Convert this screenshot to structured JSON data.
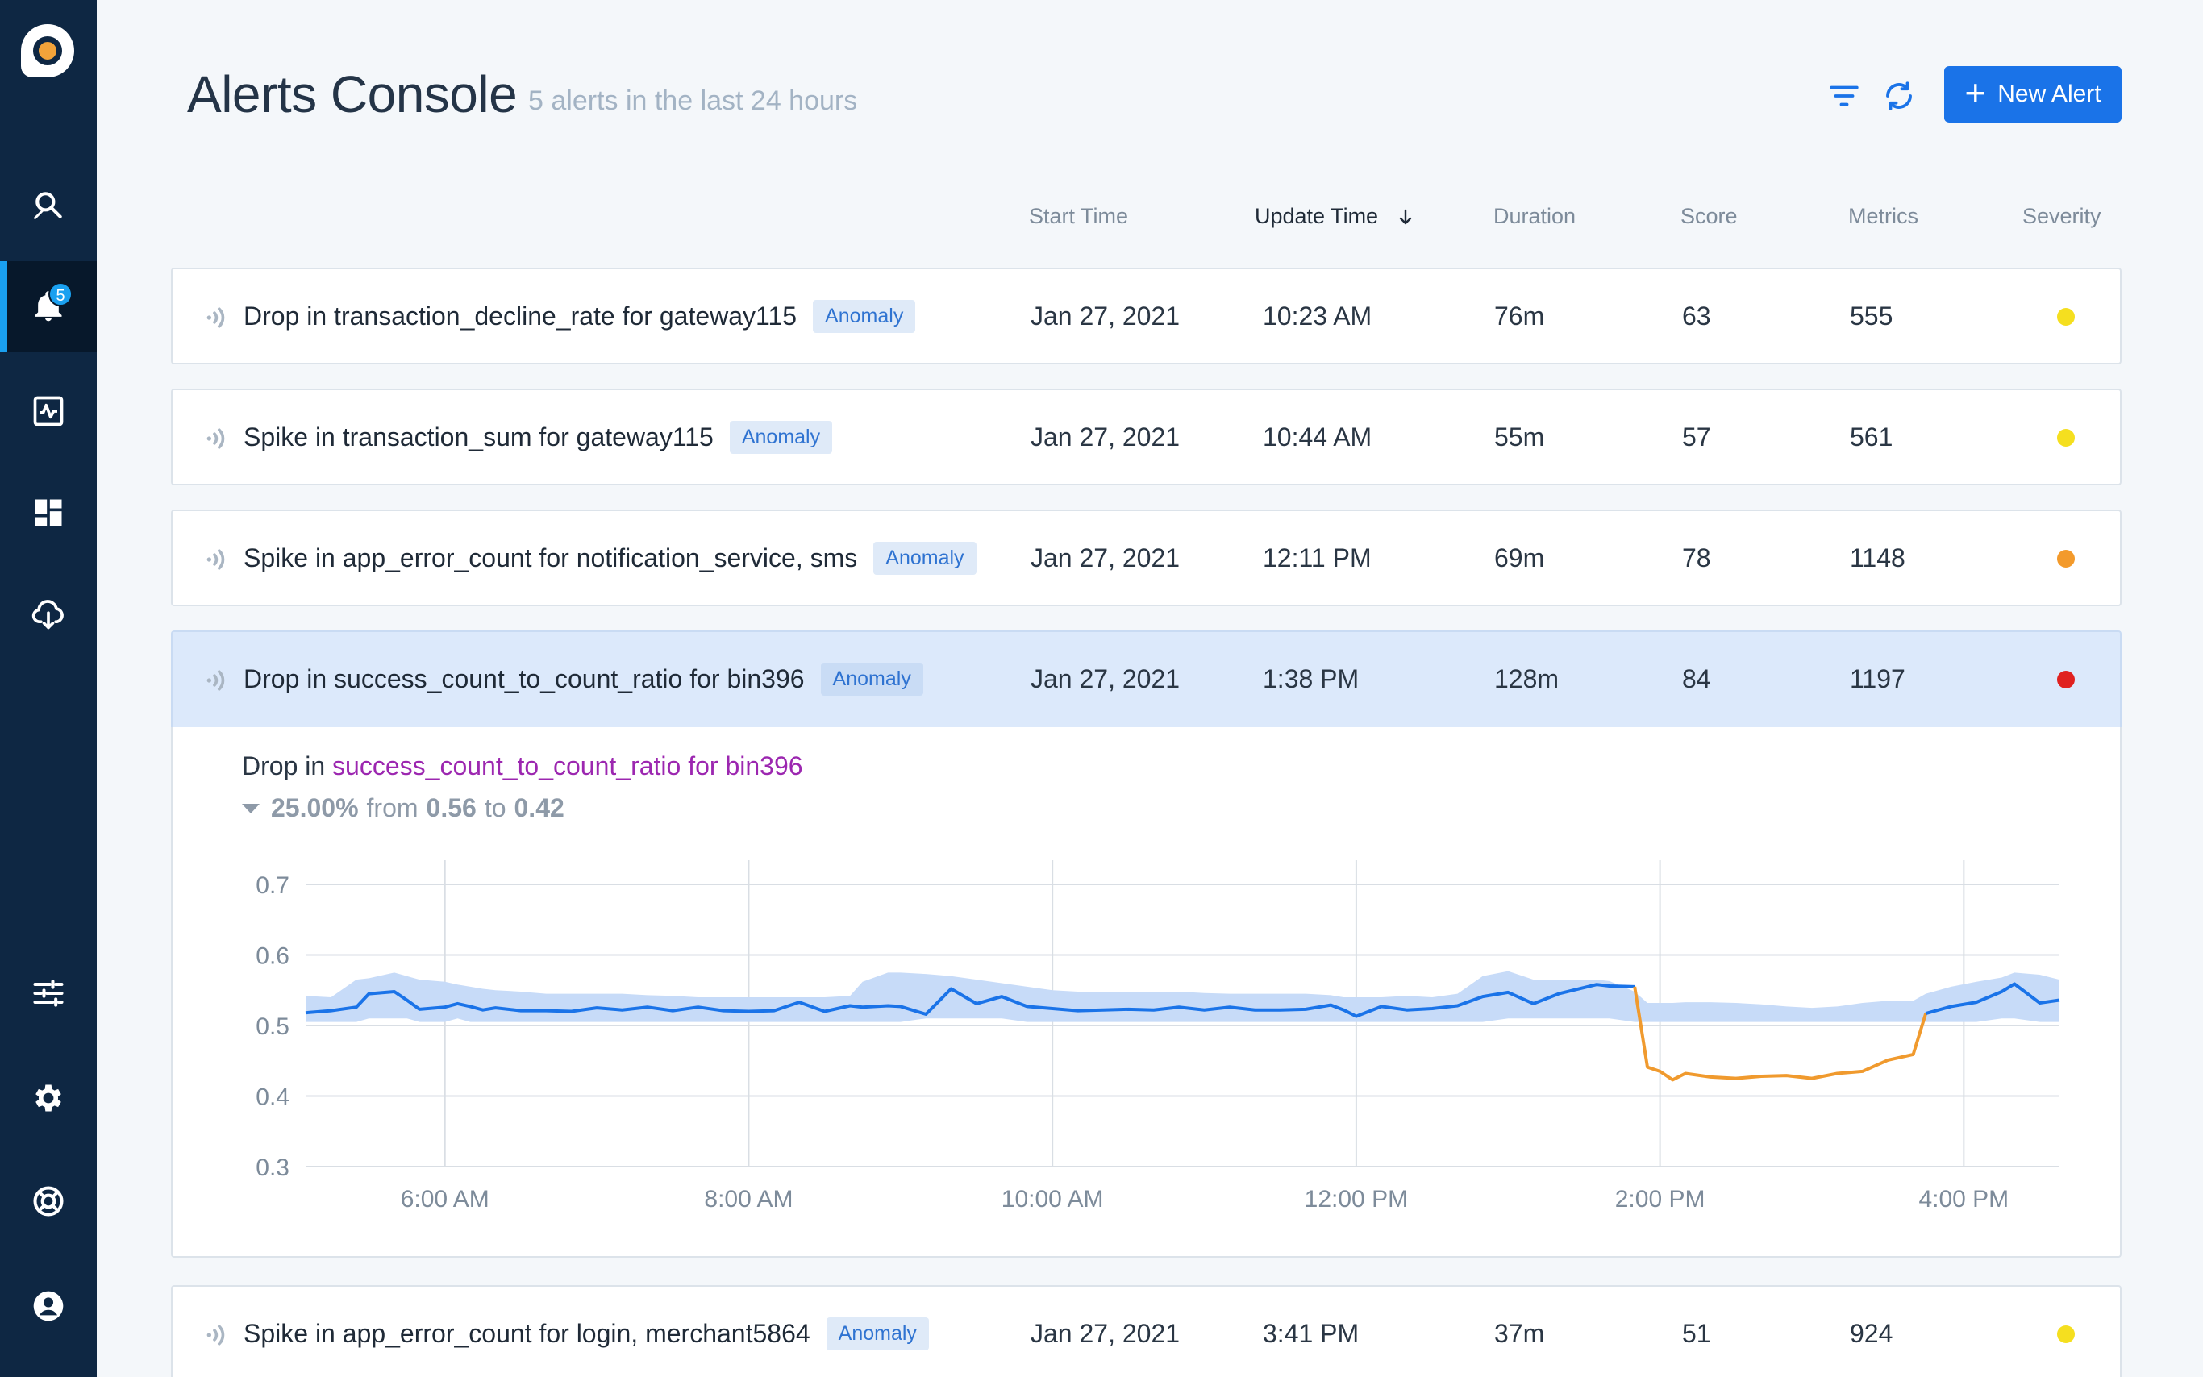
{
  "app": {
    "logo_icon": "anodot-logo",
    "accent": "#1a73e8"
  },
  "sidebar": {
    "items": [
      {
        "icon": "search-icon",
        "active": false
      },
      {
        "icon": "bell-icon",
        "active": true,
        "badge": "5"
      },
      {
        "icon": "activity-icon",
        "active": false
      },
      {
        "icon": "dashboard-icon",
        "active": false
      },
      {
        "icon": "cloud-download-icon",
        "active": false
      },
      {
        "icon": "sliders-icon",
        "active": false
      },
      {
        "icon": "gear-icon",
        "active": false
      },
      {
        "icon": "help-icon",
        "active": false
      },
      {
        "icon": "user-icon",
        "active": false
      }
    ]
  },
  "header": {
    "title": "Alerts Console",
    "subtitle": "5 alerts in the last 24 hours",
    "new_alert_label": "New Alert",
    "filter_icon": "filter-icon",
    "refresh_icon": "refresh-icon"
  },
  "columns": {
    "start_time": "Start Time",
    "update_time": "Update Time",
    "duration": "Duration",
    "score": "Score",
    "metrics": "Metrics",
    "severity": "Severity",
    "sort_icon": "arrow-down-icon"
  },
  "severity_colors": {
    "yellow": "#f5df1f",
    "orange": "#f39a2b",
    "red": "#e0211f"
  },
  "alerts": [
    {
      "title": "Drop in transaction_decline_rate for gateway115",
      "badge": "Anomaly",
      "start": "Jan 27, 2021",
      "update": "10:23 AM",
      "duration": "76m",
      "score": "63",
      "metrics": "555",
      "severity": "yellow"
    },
    {
      "title": "Spike in transaction_sum for gateway115",
      "badge": "Anomaly",
      "start": "Jan 27, 2021",
      "update": "10:44 AM",
      "duration": "55m",
      "score": "57",
      "metrics": "561",
      "severity": "yellow"
    },
    {
      "title": "Spike in app_error_count for notification_service, sms",
      "badge": "Anomaly",
      "start": "Jan 27, 2021",
      "update": "12:11 PM",
      "duration": "69m",
      "score": "78",
      "metrics": "1148",
      "severity": "orange"
    },
    {
      "title": "Drop in success_count_to_count_ratio for bin396",
      "badge": "Anomaly",
      "start": "Jan 27, 2021",
      "update": "1:38 PM",
      "duration": "128m",
      "score": "84",
      "metrics": "1197",
      "severity": "red"
    },
    {
      "title": "Spike in app_error_count for login, merchant5864",
      "badge": "Anomaly",
      "start": "Jan 27, 2021",
      "update": "3:41 PM",
      "duration": "37m",
      "score": "51",
      "metrics": "924",
      "severity": "yellow"
    }
  ],
  "detail": {
    "direction": "Drop in",
    "metric": "success_count_to_count_ratio for bin396",
    "change_pct": "25.00%",
    "from_label": "from",
    "from_value": "0.56",
    "to_label": "to",
    "to_value": "0.42",
    "direction_icon": "triangle-down-icon"
  },
  "chart_data": {
    "type": "line",
    "y_ticks": [
      "0.7",
      "0.6",
      "0.5",
      "0.4",
      "0.3"
    ],
    "ylim": [
      0.3,
      0.7
    ],
    "x_ticks": [
      "6:00 AM",
      "8:00 AM",
      "10:00 AM",
      "12:00 PM",
      "2:00 PM",
      "4:00 PM"
    ],
    "x_tick_hours": [
      6,
      8,
      10,
      12,
      14,
      16
    ],
    "xlim": [
      5.083,
      16.63
    ],
    "colors": {
      "normal": "#1a73e8",
      "anomaly": "#f09a2e",
      "band": "#c7dbf8",
      "grid": "#d9dee4"
    },
    "x": [
      5.083,
      5.25,
      5.417,
      5.5,
      5.667,
      5.75,
      5.833,
      6.0,
      6.083,
      6.167,
      6.25,
      6.333,
      6.5,
      6.667,
      6.833,
      7.0,
      7.167,
      7.333,
      7.5,
      7.667,
      7.833,
      8.0,
      8.167,
      8.333,
      8.5,
      8.667,
      8.75,
      8.917,
      9.0,
      9.167,
      9.333,
      9.5,
      9.667,
      9.833,
      10.0,
      10.167,
      10.333,
      10.5,
      10.667,
      10.833,
      11.0,
      11.167,
      11.333,
      11.5,
      11.667,
      11.833,
      11.917,
      12.0,
      12.167,
      12.333,
      12.5,
      12.667,
      12.833,
      13.0,
      13.167,
      13.333,
      13.583,
      13.667,
      13.833,
      13.917,
      14.0,
      14.083,
      14.167,
      14.333,
      14.5,
      14.667,
      14.833,
      15.0,
      15.167,
      15.333,
      15.5,
      15.667,
      15.75,
      15.917,
      16.083,
      16.25,
      16.333,
      16.5,
      16.63
    ],
    "series": [
      {
        "name": "value",
        "values": [
          0.518,
          0.521,
          0.526,
          0.545,
          0.548,
          0.536,
          0.523,
          0.526,
          0.531,
          0.527,
          0.522,
          0.525,
          0.521,
          0.521,
          0.52,
          0.525,
          0.522,
          0.526,
          0.521,
          0.526,
          0.521,
          0.52,
          0.521,
          0.533,
          0.52,
          0.528,
          0.526,
          0.528,
          0.527,
          0.516,
          0.552,
          0.531,
          0.541,
          0.527,
          0.524,
          0.521,
          0.522,
          0.523,
          0.522,
          0.526,
          0.522,
          0.526,
          0.522,
          0.522,
          0.523,
          0.529,
          0.522,
          0.513,
          0.527,
          0.522,
          0.524,
          0.528,
          0.541,
          0.547,
          0.531,
          0.545,
          0.558,
          0.556,
          0.555,
          0.441,
          0.435,
          0.423,
          0.432,
          0.427,
          0.425,
          0.428,
          0.429,
          0.425,
          0.432,
          0.435,
          0.451,
          0.459,
          0.517,
          0.527,
          0.533,
          0.548,
          0.559,
          0.532,
          0.536
        ],
        "anomaly_start_index": 58,
        "anomaly_end_index": 72
      },
      {
        "name": "band_upper",
        "values": [
          0.542,
          0.54,
          0.565,
          0.567,
          0.575,
          0.57,
          0.565,
          0.562,
          0.558,
          0.555,
          0.552,
          0.55,
          0.548,
          0.545,
          0.545,
          0.545,
          0.545,
          0.543,
          0.542,
          0.54,
          0.54,
          0.54,
          0.54,
          0.54,
          0.54,
          0.542,
          0.562,
          0.575,
          0.575,
          0.573,
          0.57,
          0.565,
          0.56,
          0.555,
          0.55,
          0.548,
          0.548,
          0.548,
          0.548,
          0.548,
          0.546,
          0.545,
          0.545,
          0.545,
          0.545,
          0.543,
          0.54,
          0.54,
          0.54,
          0.542,
          0.54,
          0.545,
          0.57,
          0.577,
          0.565,
          0.565,
          0.565,
          0.563,
          0.548,
          0.532,
          0.532,
          0.532,
          0.533,
          0.533,
          0.532,
          0.53,
          0.527,
          0.525,
          0.527,
          0.532,
          0.535,
          0.535,
          0.545,
          0.555,
          0.562,
          0.568,
          0.575,
          0.572,
          0.565
        ]
      },
      {
        "name": "band_lower",
        "values": [
          0.505,
          0.505,
          0.505,
          0.51,
          0.51,
          0.51,
          0.505,
          0.505,
          0.51,
          0.505,
          0.505,
          0.505,
          0.505,
          0.505,
          0.505,
          0.505,
          0.505,
          0.505,
          0.505,
          0.505,
          0.505,
          0.505,
          0.505,
          0.505,
          0.505,
          0.505,
          0.505,
          0.505,
          0.505,
          0.51,
          0.51,
          0.51,
          0.51,
          0.505,
          0.505,
          0.505,
          0.505,
          0.505,
          0.505,
          0.505,
          0.505,
          0.505,
          0.505,
          0.505,
          0.505,
          0.505,
          0.505,
          0.505,
          0.505,
          0.505,
          0.505,
          0.505,
          0.505,
          0.51,
          0.51,
          0.51,
          0.51,
          0.51,
          0.505,
          0.505,
          0.505,
          0.505,
          0.505,
          0.505,
          0.505,
          0.505,
          0.505,
          0.505,
          0.505,
          0.505,
          0.505,
          0.505,
          0.505,
          0.505,
          0.505,
          0.51,
          0.51,
          0.505,
          0.505
        ]
      }
    ]
  }
}
